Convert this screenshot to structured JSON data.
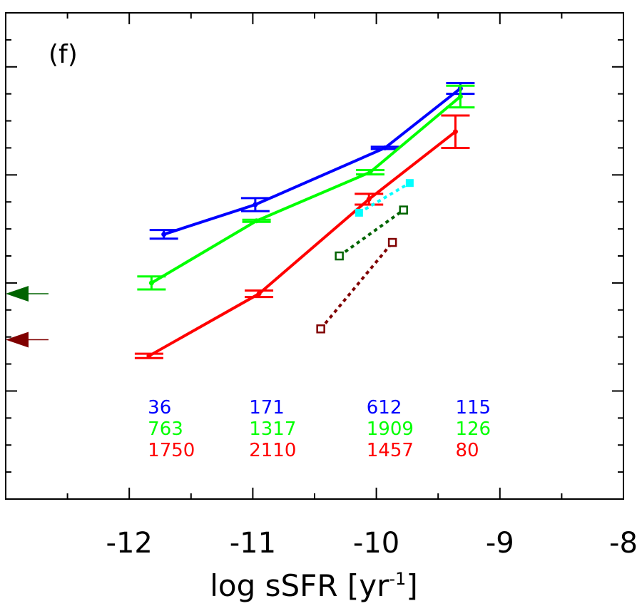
{
  "chart_data": {
    "type": "line",
    "panel_label": "(f)",
    "xlabel": "log sSFR [yr",
    "xlabel_sup": "-1",
    "xlabel_close": "]",
    "xlim": [
      -13,
      -8
    ],
    "x_ticks": [
      -12,
      -11,
      -10,
      -9,
      -8
    ],
    "x_tick_labels": [
      "-12",
      "-11",
      "-10",
      "-9",
      "-8"
    ],
    "ylim": [
      0,
      9
    ],
    "y_ticks_labeled": false,
    "series": [
      {
        "color": "#0000ff",
        "style": "solid",
        "marker": "dot",
        "x": [
          -11.72,
          -10.98,
          -9.93,
          -9.32
        ],
        "y": [
          4.9,
          5.45,
          6.5,
          7.6
        ],
        "err": [
          0.08,
          0.12,
          0.02,
          0.1
        ]
      },
      {
        "color": "#00ff00",
        "style": "solid",
        "marker": "dot",
        "x": [
          -11.82,
          -10.97,
          -10.05,
          -9.32
        ],
        "y": [
          4.0,
          5.15,
          6.05,
          7.45
        ],
        "err": [
          0.12,
          0.02,
          0.04,
          0.2
        ]
      },
      {
        "color": "#ff0000",
        "style": "solid",
        "marker": "dot",
        "x": [
          -11.84,
          -10.95,
          -10.06,
          -9.36
        ],
        "y": [
          2.65,
          3.8,
          5.55,
          6.8
        ],
        "err": [
          0.04,
          0.06,
          0.1,
          0.3
        ]
      },
      {
        "color": "#00ffff",
        "style": "dotted",
        "marker": "filled-square",
        "x": [
          -10.14,
          -9.73
        ],
        "y": [
          5.3,
          5.85
        ]
      },
      {
        "color": "#006400",
        "style": "dotted",
        "marker": "open-square",
        "x": [
          -10.3,
          -9.78
        ],
        "y": [
          4.5,
          5.35
        ]
      },
      {
        "color": "#800000",
        "style": "dotted",
        "marker": "open-square",
        "x": [
          -10.45,
          -9.87
        ],
        "y": [
          3.15,
          4.75
        ]
      }
    ],
    "arrows": [
      {
        "color": "#006400",
        "y": 3.8
      },
      {
        "color": "#800000",
        "y": 2.95
      }
    ],
    "counts": [
      {
        "color": "#0000ff",
        "values": [
          "36",
          "171",
          "612",
          "115"
        ]
      },
      {
        "color": "#00ff00",
        "values": [
          "763",
          "1317",
          "1909",
          "126"
        ]
      },
      {
        "color": "#ff0000",
        "values": [
          "1750",
          "2110",
          "1457",
          "80"
        ]
      }
    ],
    "count_x": [
      -11.85,
      -11.03,
      -10.08,
      -9.36
    ]
  }
}
